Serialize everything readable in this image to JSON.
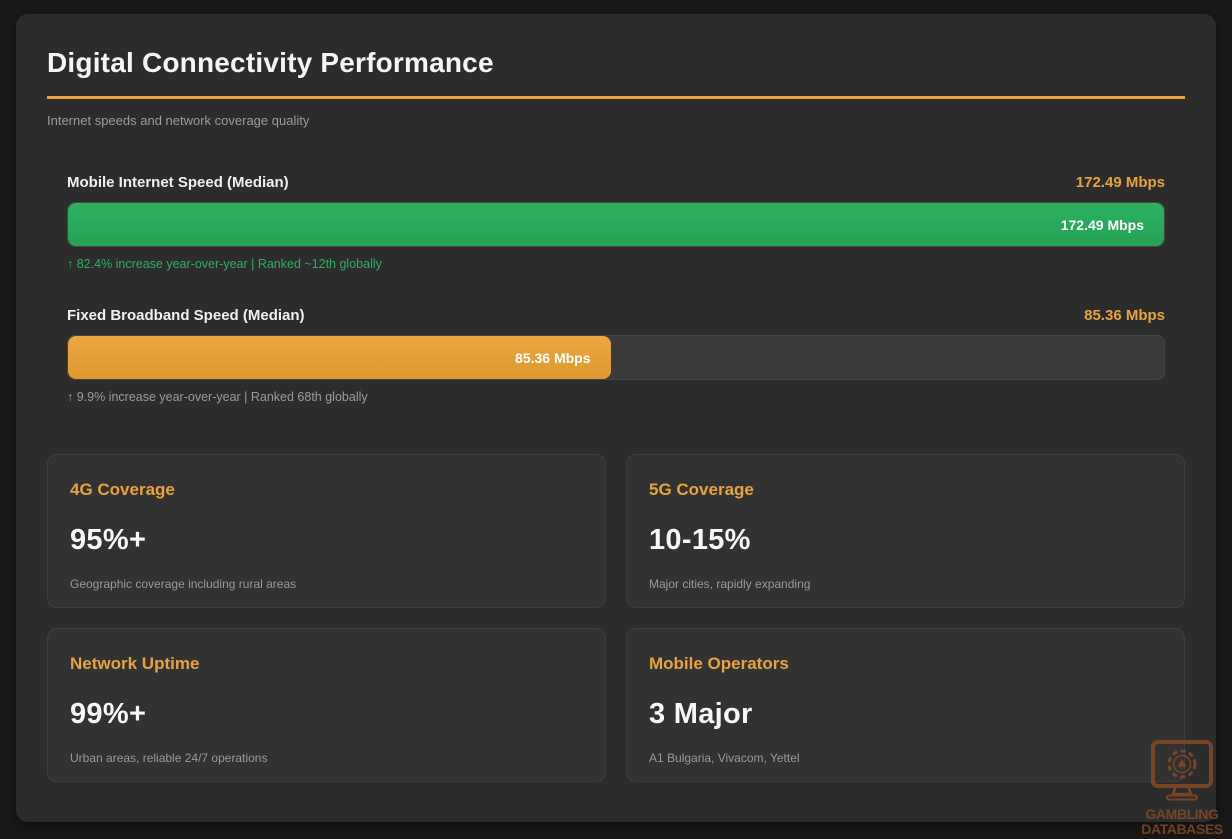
{
  "page": {
    "title": "Digital Connectivity Performance",
    "subtitle": "Internet speeds and network coverage quality"
  },
  "colors": {
    "accent_orange": "#e8a33d",
    "bar_green": "#28a95c",
    "bar_orange": "#e39c35",
    "page_background": "#191919",
    "panel_background": "#2c2c2c",
    "card_background": "#323232",
    "caption_green": "#2fae62",
    "muted_gray": "#9b9b9b"
  },
  "chart_data": {
    "type": "bar",
    "title": "Digital Connectivity Performance",
    "subtitle": "Internet speeds and network coverage quality",
    "categories": [
      "Mobile Internet Speed (Median)",
      "Fixed Broadband Speed (Median)"
    ],
    "values": [
      172.49,
      85.36
    ],
    "unit": "Mbps",
    "xlim": [
      0,
      172.49
    ],
    "annotations": [
      "↑ 82.4% increase year-over-year | Ranked ~12th globally",
      "↑ 9.9% increase year-over-year | Ranked 68th globally"
    ],
    "bar_colors": [
      "#28a95c",
      "#e39c35"
    ],
    "orientation": "horizontal",
    "grid": false,
    "legend": false
  },
  "bars": [
    {
      "label": "Mobile Internet Speed (Median)",
      "value_label": "172.49 Mbps",
      "bar_value_label": "172.49 Mbps",
      "percent": 100,
      "caption": "↑ 82.4% increase year-over-year | Ranked ~12th globally"
    },
    {
      "label": "Fixed Broadband Speed (Median)",
      "value_label": "85.36 Mbps",
      "bar_value_label": "85.36 Mbps",
      "percent": 49.5,
      "caption": "↑ 9.9% increase year-over-year | Ranked 68th globally"
    }
  ],
  "cards": [
    {
      "title": "4G Coverage",
      "value": "95%+",
      "caption": "Geographic coverage including rural areas"
    },
    {
      "title": "5G Coverage",
      "value": "10-15%",
      "caption": "Major cities, rapidly expanding"
    },
    {
      "title": "Network Uptime",
      "value": "99%+",
      "caption": "Urban areas, reliable 24/7 operations"
    },
    {
      "title": "Mobile Operators",
      "value": "3 Major",
      "caption": "A1 Bulgaria, Vivacom, Yettel"
    }
  ],
  "watermark": {
    "line1": "GAMBLING",
    "line2": "DATABASES"
  }
}
